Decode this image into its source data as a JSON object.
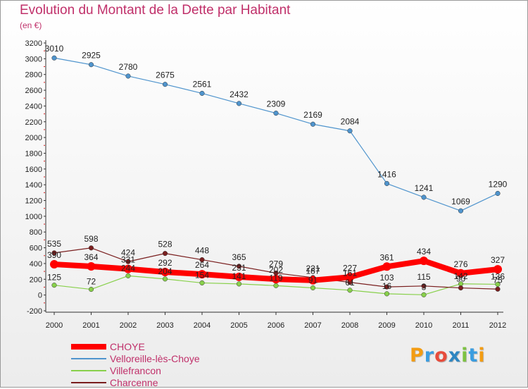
{
  "title": "Evolution du Montant de la Dette par Habitant",
  "subtitle": "(en €)",
  "logo_text": "Proxiti",
  "logo_letters": [
    {
      "ch": "P",
      "color": "#f39c12"
    },
    {
      "ch": "r",
      "color": "#3b9de0"
    },
    {
      "ch": "o",
      "color": "#e74c3c"
    },
    {
      "ch": "x",
      "color": "#2e86c1"
    },
    {
      "ch": "i",
      "color": "#7dc242"
    },
    {
      "ch": "t",
      "color": "#3b9de0"
    },
    {
      "ch": "i",
      "color": "#f39c12"
    }
  ],
  "chart_data": {
    "type": "line",
    "title": "Evolution du Montant de la Dette par Habitant",
    "ylabel": "(en €)",
    "xlabel": "",
    "categories": [
      "2000",
      "2001",
      "2002",
      "2003",
      "2004",
      "2005",
      "2006",
      "2007",
      "2008",
      "2009",
      "2010",
      "2011",
      "2012"
    ],
    "ylim": [
      -200,
      3200
    ],
    "yticks": [
      -200,
      0,
      200,
      400,
      600,
      800,
      1000,
      1200,
      1400,
      1600,
      1800,
      2000,
      2200,
      2400,
      2600,
      2800,
      3000,
      3200
    ],
    "grid": false,
    "legend_position": "bottom-left",
    "series": [
      {
        "name": "CHOYE",
        "color": "#ff0000",
        "style": "thick",
        "values": [
          390,
          364,
          331,
          292,
          264,
          231,
          202,
          187,
          227,
          361,
          434,
          276,
          327
        ]
      },
      {
        "name": "Velloreille-lès-Choye",
        "color": "#4f94cd",
        "style": "thin",
        "values": [
          3010,
          2925,
          2780,
          2675,
          2561,
          2432,
          2309,
          2169,
          2084,
          1416,
          1241,
          1069,
          1290
        ]
      },
      {
        "name": "Villefrancon",
        "color": "#88d04b",
        "style": "thin",
        "values": [
          125,
          72,
          244,
          204,
          154,
          141,
          119,
          91,
          61,
          16,
          3,
          142,
          136
        ]
      },
      {
        "name": "Charcenne",
        "color": "#7a1f1f",
        "style": "thin",
        "values": [
          535,
          598,
          424,
          528,
          448,
          365,
          279,
          221,
          161,
          103,
          115,
          90,
          75
        ]
      }
    ]
  }
}
